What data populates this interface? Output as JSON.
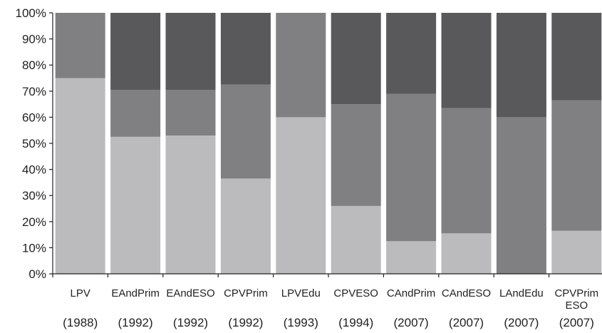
{
  "chart_data": {
    "type": "bar",
    "stacked": true,
    "percent_stacked": true,
    "title": "",
    "xlabel": "",
    "ylabel": "",
    "ylim": [
      0,
      100
    ],
    "y_ticks": [
      "0%",
      "10%",
      "20%",
      "30%",
      "40%",
      "50%",
      "60%",
      "70%",
      "80%",
      "90%",
      "100%"
    ],
    "categories": [
      {
        "name": [
          "LPV"
        ],
        "year": "(1988)"
      },
      {
        "name": [
          "EAndPrim"
        ],
        "year": "(1992)"
      },
      {
        "name": [
          "EAndESO"
        ],
        "year": "(1992)"
      },
      {
        "name": [
          "CPVPrim"
        ],
        "year": "(1992)"
      },
      {
        "name": [
          "LPVEdu"
        ],
        "year": "(1993)"
      },
      {
        "name": [
          "CPVESO"
        ],
        "year": "(1994)"
      },
      {
        "name": [
          "CAndPrim"
        ],
        "year": "(2007)"
      },
      {
        "name": [
          "CAndESO"
        ],
        "year": "(2007)"
      },
      {
        "name": [
          "LAndEdu"
        ],
        "year": "(2007)"
      },
      {
        "name": [
          "CPVPrim",
          "ESO"
        ],
        "year": "(2007)"
      }
    ],
    "series": [
      {
        "color": "#bbbbbe",
        "values": [
          75,
          52.5,
          53,
          36.5,
          60,
          26,
          12.5,
          15.5,
          0,
          16.5
        ]
      },
      {
        "color": "#808083",
        "values": [
          25,
          18,
          17.5,
          36,
          40,
          39,
          56.5,
          48,
          60,
          50
        ]
      },
      {
        "color": "#59595b",
        "values": [
          0,
          29.5,
          29.5,
          27.5,
          0,
          35,
          31,
          36.5,
          40,
          33.5
        ]
      }
    ],
    "grid": false,
    "legend": "none"
  }
}
